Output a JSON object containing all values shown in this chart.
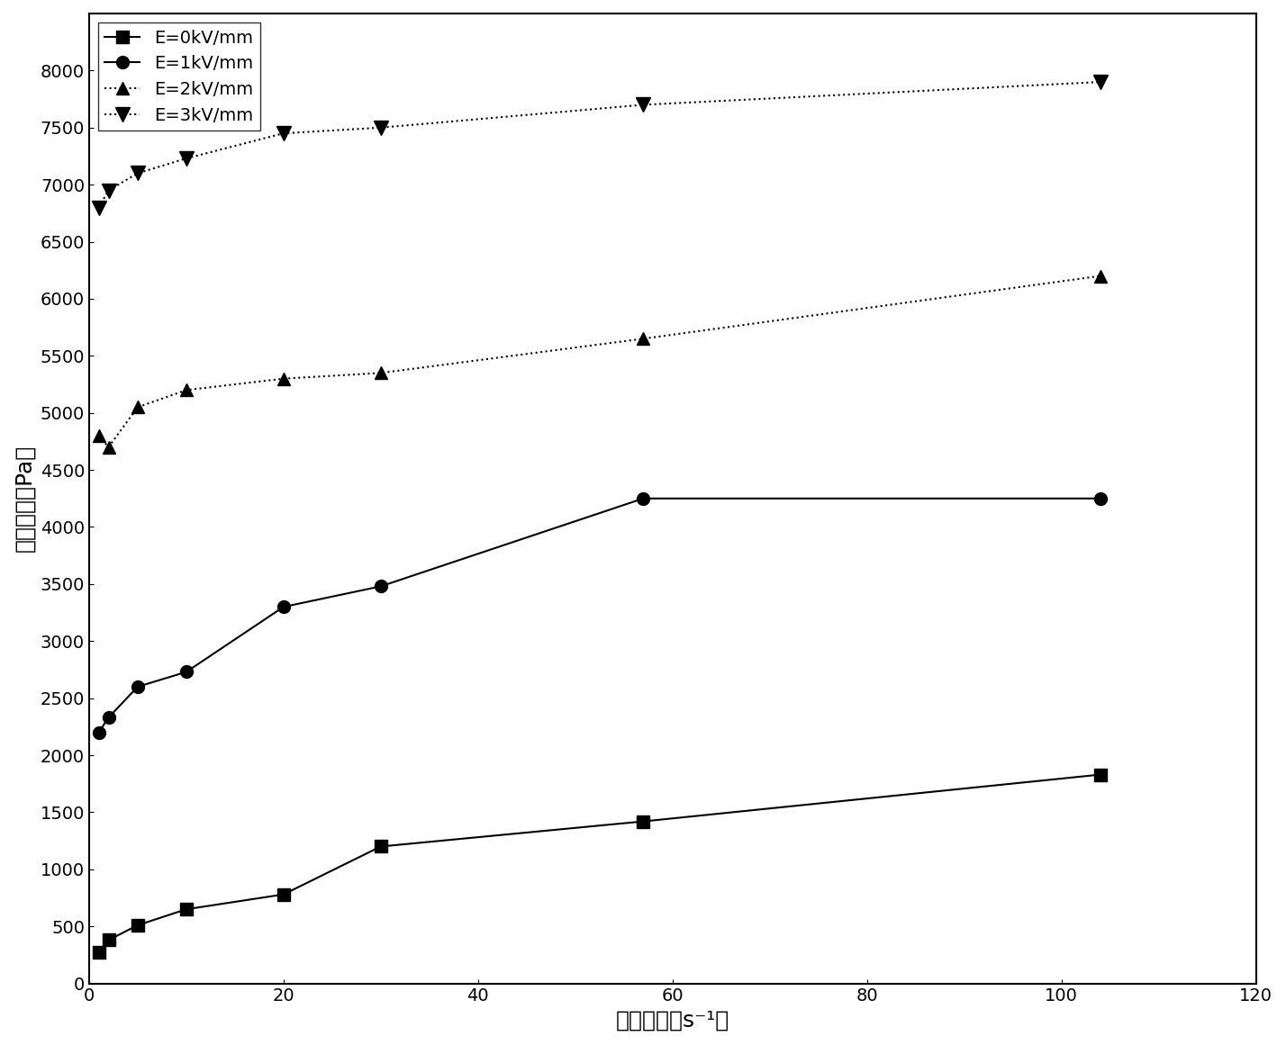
{
  "series": [
    {
      "label": "E=0kV/mm",
      "x": [
        1,
        2,
        5,
        10,
        20,
        30,
        57,
        104
      ],
      "y": [
        270,
        380,
        510,
        650,
        780,
        1200,
        1420,
        1830
      ],
      "marker": "s",
      "linestyle": "-",
      "color": "#000000",
      "markersize": 10
    },
    {
      "label": "E=1kV/mm",
      "x": [
        1,
        2,
        5,
        10,
        20,
        30,
        57,
        104
      ],
      "y": [
        2200,
        2330,
        2600,
        2730,
        3300,
        3480,
        4250,
        4250
      ],
      "marker": "o",
      "linestyle": "-",
      "color": "#000000",
      "markersize": 10
    },
    {
      "label": "E=2kV/mm",
      "x": [
        1,
        2,
        5,
        10,
        20,
        30,
        57,
        104
      ],
      "y": [
        4800,
        4700,
        5050,
        5200,
        5300,
        5350,
        5650,
        6200
      ],
      "marker": "^",
      "linestyle": ":",
      "color": "#000000",
      "markersize": 10
    },
    {
      "label": "E=3kV/mm",
      "x": [
        1,
        2,
        5,
        10,
        20,
        30,
        57,
        104
      ],
      "y": [
        6800,
        6950,
        7100,
        7230,
        7450,
        7500,
        7700,
        7900
      ],
      "marker": "v",
      "linestyle": ":",
      "color": "#000000",
      "markersize": 12
    }
  ],
  "xlabel": "剪切速率（s⁻¹）",
  "ylabel": "剪切应力（Pa）",
  "xlim": [
    0,
    120
  ],
  "ylim": [
    0,
    8500
  ],
  "xticks": [
    0,
    20,
    40,
    60,
    80,
    100,
    120
  ],
  "yticks": [
    0,
    500,
    1000,
    1500,
    2000,
    2500,
    3000,
    3500,
    4000,
    4500,
    5000,
    5500,
    6000,
    6500,
    7000,
    7500,
    8000
  ],
  "background_color": "#ffffff",
  "legend_loc": "upper left",
  "title_fontsize": 16,
  "label_fontsize": 18,
  "tick_fontsize": 14,
  "legend_fontsize": 14
}
